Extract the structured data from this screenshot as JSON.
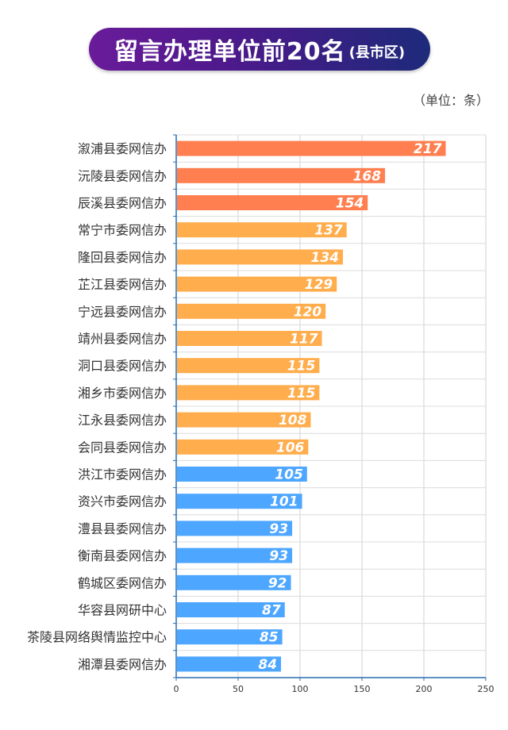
{
  "title": {
    "main": "留言办理单位前20名",
    "sub": "(县市区)"
  },
  "unit": "（单位：条）",
  "chart_data": {
    "type": "bar",
    "orientation": "horizontal",
    "categories": [
      "溆浦县委网信办",
      "沅陵县委网信办",
      "辰溪县委网信办",
      "常宁市委网信办",
      "隆回县委网信办",
      "芷江县委网信办",
      "宁远县委网信办",
      "靖州县委网信办",
      "洞口县委网信办",
      "湘乡市委网信办",
      "江永县委网信办",
      "会同县委网信办",
      "洪江市委网信办",
      "资兴市委网信办",
      "澧县县委网信办",
      "衡南县委网信办",
      "鹤城区委网信办",
      "华容县网研中心",
      "茶陵县网络舆情监控中心",
      "湘潭县委网信办"
    ],
    "values": [
      217,
      168,
      154,
      137,
      134,
      129,
      120,
      117,
      115,
      115,
      108,
      106,
      105,
      101,
      93,
      93,
      92,
      87,
      85,
      84
    ],
    "colors": [
      "#ff7f50",
      "#ff7f50",
      "#ff7f50",
      "#ffad4d",
      "#ffad4d",
      "#ffad4d",
      "#ffad4d",
      "#ffad4d",
      "#ffad4d",
      "#ffad4d",
      "#ffad4d",
      "#ffad4d",
      "#4da6ff",
      "#4da6ff",
      "#4da6ff",
      "#4da6ff",
      "#4da6ff",
      "#4da6ff",
      "#4da6ff",
      "#4da6ff"
    ],
    "xlim": [
      0,
      250
    ],
    "xticks": [
      "0",
      "50",
      "100",
      "150",
      "200",
      "250"
    ],
    "grid": true,
    "data_labels": true
  }
}
